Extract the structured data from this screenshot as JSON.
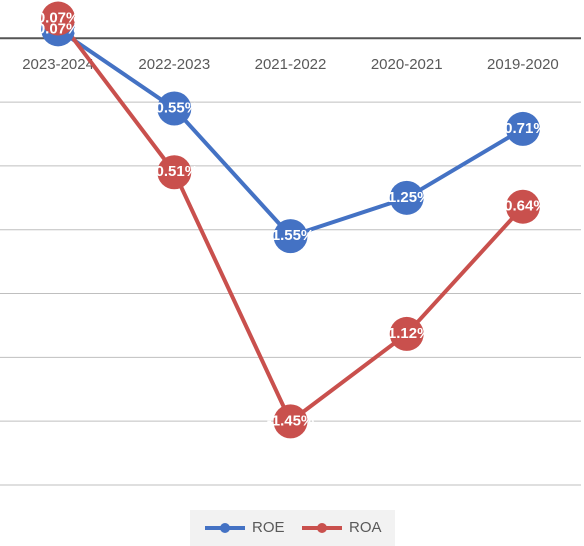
{
  "chart_data": {
    "type": "line",
    "categories": [
      "2023-2024",
      "2022-2023",
      "2021-2022",
      "2020-2021",
      "2019-2020"
    ],
    "series": [
      {
        "name": "ROE",
        "color": "#4472c4",
        "values": [
          0.07,
          -0.55,
          -1.55,
          -1.25,
          -0.71
        ],
        "value_labels": [
          "0.07%",
          "-0.55%",
          "-1.55%",
          "-1.25%",
          "-0.71%"
        ]
      },
      {
        "name": "ROA",
        "color": "#c9504d",
        "axis": "y2",
        "values": [
          0.07,
          -0.51,
          -1.45,
          -1.12,
          -0.64
        ],
        "value_labels": [
          "0.07%",
          "-0.51%",
          "-1.45%",
          "-1.12%",
          "-0.64%"
        ]
      }
    ],
    "ylim": [
      -3.5,
      0.3
    ],
    "yticks": [
      -3.5,
      -3,
      -2.5,
      -2,
      -1.5,
      -1,
      -0.5,
      0
    ],
    "y2lim": [
      -1.69,
      0.14
    ],
    "grid": true,
    "legend": "bottom"
  }
}
